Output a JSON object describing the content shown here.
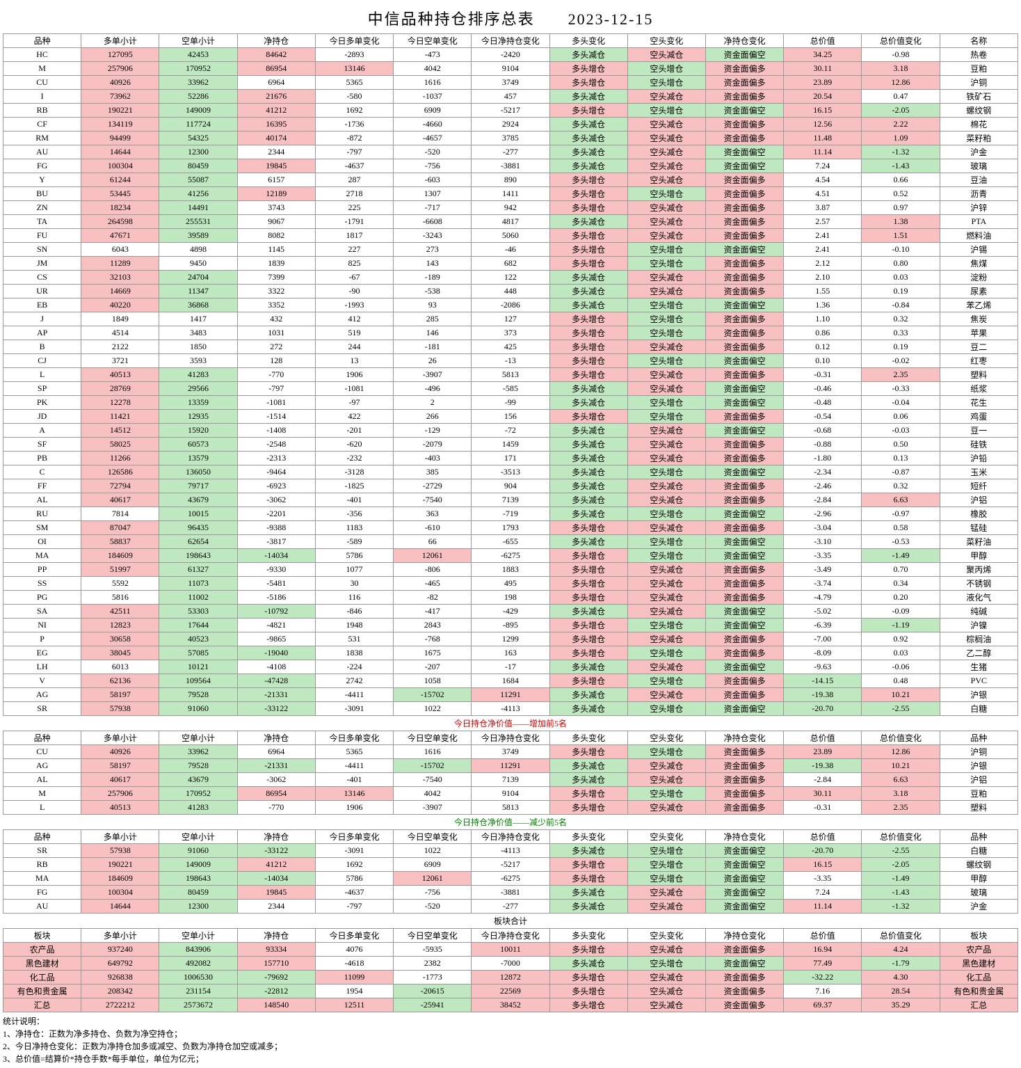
{
  "title": "中信品种持仓排序总表　　2023-12-15",
  "columns": [
    "品种",
    "多单小计",
    "空单小计",
    "净持仓",
    "今日多单变化",
    "今日空单变化",
    "今日净持仓变化",
    "多头变化",
    "空头变化",
    "净持仓变化",
    "总价值",
    "总价值变化",
    "名称"
  ],
  "rows": [
    [
      "HC",
      "127095",
      "42453",
      "84642",
      "-2893",
      "-473",
      "-2420",
      "多头减仓",
      "空头减仓",
      "资金面偏空",
      "34.25",
      "-0.98",
      "热卷"
    ],
    [
      "M",
      "257906",
      "170952",
      "86954",
      "13146",
      "4042",
      "9104",
      "多头增仓",
      "空头增仓",
      "资金面偏多",
      "30.11",
      "3.18",
      "豆粕"
    ],
    [
      "CU",
      "40926",
      "33962",
      "6964",
      "5365",
      "1616",
      "3749",
      "多头增仓",
      "空头增仓",
      "资金面偏多",
      "23.89",
      "12.86",
      "沪铜"
    ],
    [
      "I",
      "73962",
      "52286",
      "21676",
      "-580",
      "-1037",
      "457",
      "多头减仓",
      "空头减仓",
      "资金面偏多",
      "20.54",
      "0.47",
      "铁矿石"
    ],
    [
      "RB",
      "190221",
      "149009",
      "41212",
      "1692",
      "6909",
      "-5217",
      "多头增仓",
      "空头增仓",
      "资金面偏空",
      "16.15",
      "-2.05",
      "螺纹钢"
    ],
    [
      "CF",
      "134119",
      "117724",
      "16395",
      "-1736",
      "-4660",
      "2924",
      "多头减仓",
      "空头减仓",
      "资金面偏多",
      "12.56",
      "2.22",
      "棉花"
    ],
    [
      "RM",
      "94499",
      "54325",
      "40174",
      "-872",
      "-4657",
      "3785",
      "多头减仓",
      "空头减仓",
      "资金面偏多",
      "11.48",
      "1.09",
      "菜籽粕"
    ],
    [
      "AU",
      "14644",
      "12300",
      "2344",
      "-797",
      "-520",
      "-277",
      "多头减仓",
      "空头减仓",
      "资金面偏空",
      "11.14",
      "-1.32",
      "沪金"
    ],
    [
      "FG",
      "100304",
      "80459",
      "19845",
      "-4637",
      "-756",
      "-3881",
      "多头减仓",
      "空头减仓",
      "资金面偏空",
      "7.24",
      "-1.43",
      "玻璃"
    ],
    [
      "Y",
      "61244",
      "55087",
      "6157",
      "287",
      "-603",
      "890",
      "多头增仓",
      "空头减仓",
      "资金面偏多",
      "4.54",
      "0.66",
      "豆油"
    ],
    [
      "BU",
      "53445",
      "41256",
      "12189",
      "2718",
      "1307",
      "1411",
      "多头增仓",
      "空头增仓",
      "资金面偏多",
      "4.51",
      "0.52",
      "沥青"
    ],
    [
      "ZN",
      "18234",
      "14491",
      "3743",
      "225",
      "-717",
      "942",
      "多头增仓",
      "空头减仓",
      "资金面偏多",
      "3.87",
      "0.97",
      "沪锌"
    ],
    [
      "TA",
      "264598",
      "255531",
      "9067",
      "-1791",
      "-6608",
      "4817",
      "多头减仓",
      "空头减仓",
      "资金面偏多",
      "2.57",
      "1.38",
      "PTA"
    ],
    [
      "FU",
      "47671",
      "39589",
      "8082",
      "1817",
      "-3243",
      "5060",
      "多头增仓",
      "空头减仓",
      "资金面偏多",
      "2.41",
      "1.51",
      "燃料油"
    ],
    [
      "SN",
      "6043",
      "4898",
      "1145",
      "227",
      "273",
      "-46",
      "多头增仓",
      "空头增仓",
      "资金面偏空",
      "2.41",
      "-0.10",
      "沪锡"
    ],
    [
      "JM",
      "11289",
      "9450",
      "1839",
      "825",
      "143",
      "682",
      "多头增仓",
      "空头增仓",
      "资金面偏多",
      "2.12",
      "0.80",
      "焦煤"
    ],
    [
      "CS",
      "32103",
      "24704",
      "7399",
      "-67",
      "-189",
      "122",
      "多头减仓",
      "空头减仓",
      "资金面偏多",
      "2.10",
      "0.03",
      "淀粉"
    ],
    [
      "UR",
      "14669",
      "11347",
      "3322",
      "-90",
      "-538",
      "448",
      "多头减仓",
      "空头减仓",
      "资金面偏多",
      "1.55",
      "0.19",
      "尿素"
    ],
    [
      "EB",
      "40220",
      "36868",
      "3352",
      "-1993",
      "93",
      "-2086",
      "多头减仓",
      "空头增仓",
      "资金面偏空",
      "1.36",
      "-0.84",
      "苯乙烯"
    ],
    [
      "J",
      "1849",
      "1417",
      "432",
      "412",
      "285",
      "127",
      "多头增仓",
      "空头增仓",
      "资金面偏多",
      "1.10",
      "0.32",
      "焦炭"
    ],
    [
      "AP",
      "4514",
      "3483",
      "1031",
      "519",
      "146",
      "373",
      "多头增仓",
      "空头增仓",
      "资金面偏多",
      "0.86",
      "0.33",
      "苹果"
    ],
    [
      "B",
      "2122",
      "1850",
      "272",
      "244",
      "-181",
      "425",
      "多头增仓",
      "空头减仓",
      "资金面偏多",
      "0.12",
      "0.19",
      "豆二"
    ],
    [
      "CJ",
      "3721",
      "3593",
      "128",
      "13",
      "26",
      "-13",
      "多头增仓",
      "空头增仓",
      "资金面偏空",
      "0.10",
      "-0.02",
      "红枣"
    ],
    [
      "L",
      "40513",
      "41283",
      "-770",
      "1906",
      "-3907",
      "5813",
      "多头增仓",
      "空头减仓",
      "资金面偏多",
      "-0.31",
      "2.35",
      "塑料"
    ],
    [
      "SP",
      "28769",
      "29566",
      "-797",
      "-1081",
      "-496",
      "-585",
      "多头减仓",
      "空头减仓",
      "资金面偏空",
      "-0.46",
      "-0.33",
      "纸浆"
    ],
    [
      "PK",
      "12278",
      "13359",
      "-1081",
      "-97",
      "2",
      "-99",
      "多头减仓",
      "空头增仓",
      "资金面偏空",
      "-0.48",
      "-0.04",
      "花生"
    ],
    [
      "JD",
      "11421",
      "12935",
      "-1514",
      "422",
      "266",
      "156",
      "多头增仓",
      "空头增仓",
      "资金面偏多",
      "-0.54",
      "0.06",
      "鸡蛋"
    ],
    [
      "A",
      "14512",
      "15920",
      "-1408",
      "-201",
      "-129",
      "-72",
      "多头减仓",
      "空头减仓",
      "资金面偏空",
      "-0.68",
      "-0.03",
      "豆一"
    ],
    [
      "SF",
      "58025",
      "60573",
      "-2548",
      "-620",
      "-2079",
      "1459",
      "多头减仓",
      "空头减仓",
      "资金面偏多",
      "-0.88",
      "0.50",
      "硅铁"
    ],
    [
      "PB",
      "11266",
      "13579",
      "-2313",
      "-232",
      "-403",
      "171",
      "多头减仓",
      "空头减仓",
      "资金面偏多",
      "-1.80",
      "0.13",
      "沪铅"
    ],
    [
      "C",
      "126586",
      "136050",
      "-9464",
      "-3128",
      "385",
      "-3513",
      "多头减仓",
      "空头增仓",
      "资金面偏空",
      "-2.34",
      "-0.87",
      "玉米"
    ],
    [
      "FF",
      "72794",
      "79717",
      "-6923",
      "-1825",
      "-2729",
      "904",
      "多头减仓",
      "空头减仓",
      "资金面偏多",
      "-2.46",
      "0.32",
      "短纤"
    ],
    [
      "AL",
      "40617",
      "43679",
      "-3062",
      "-401",
      "-7540",
      "7139",
      "多头减仓",
      "空头减仓",
      "资金面偏多",
      "-2.84",
      "6.63",
      "沪铝"
    ],
    [
      "RU",
      "7814",
      "10015",
      "-2201",
      "-356",
      "363",
      "-719",
      "多头减仓",
      "空头增仓",
      "资金面偏空",
      "-2.96",
      "-0.97",
      "橡胶"
    ],
    [
      "SM",
      "87047",
      "96435",
      "-9388",
      "1183",
      "-610",
      "1793",
      "多头增仓",
      "空头减仓",
      "资金面偏多",
      "-3.04",
      "0.58",
      "锰硅"
    ],
    [
      "OI",
      "58837",
      "62654",
      "-3817",
      "-589",
      "66",
      "-655",
      "多头减仓",
      "空头增仓",
      "资金面偏空",
      "-3.10",
      "-0.53",
      "菜籽油"
    ],
    [
      "MA",
      "184609",
      "198643",
      "-14034",
      "5786",
      "12061",
      "-6275",
      "多头增仓",
      "空头增仓",
      "资金面偏空",
      "-3.35",
      "-1.49",
      "甲醇"
    ],
    [
      "PP",
      "51997",
      "61327",
      "-9330",
      "1077",
      "-806",
      "1883",
      "多头增仓",
      "空头减仓",
      "资金面偏多",
      "-3.49",
      "0.70",
      "聚丙烯"
    ],
    [
      "SS",
      "5592",
      "11073",
      "-5481",
      "30",
      "-465",
      "495",
      "多头增仓",
      "空头减仓",
      "资金面偏多",
      "-3.74",
      "0.34",
      "不锈钢"
    ],
    [
      "PG",
      "5816",
      "11002",
      "-5186",
      "116",
      "-82",
      "198",
      "多头增仓",
      "空头减仓",
      "资金面偏多",
      "-4.79",
      "0.20",
      "液化气"
    ],
    [
      "SA",
      "42511",
      "53303",
      "-10792",
      "-846",
      "-417",
      "-429",
      "多头减仓",
      "空头减仓",
      "资金面偏空",
      "-5.02",
      "-0.09",
      "纯碱"
    ],
    [
      "NI",
      "12823",
      "17644",
      "-4821",
      "1948",
      "2843",
      "-895",
      "多头增仓",
      "空头增仓",
      "资金面偏空",
      "-6.39",
      "-1.19",
      "沪镍"
    ],
    [
      "P",
      "30658",
      "40523",
      "-9865",
      "531",
      "-768",
      "1299",
      "多头增仓",
      "空头减仓",
      "资金面偏多",
      "-7.00",
      "0.92",
      "棕榈油"
    ],
    [
      "EG",
      "38045",
      "57085",
      "-19040",
      "1838",
      "1675",
      "163",
      "多头增仓",
      "空头增仓",
      "资金面偏多",
      "-8.09",
      "0.03",
      "乙二醇"
    ],
    [
      "LH",
      "6013",
      "10121",
      "-4108",
      "-224",
      "-207",
      "-17",
      "多头减仓",
      "空头减仓",
      "资金面偏空",
      "-9.63",
      "-0.06",
      "生猪"
    ],
    [
      "V",
      "62136",
      "109564",
      "-47428",
      "2742",
      "1058",
      "1684",
      "多头增仓",
      "空头增仓",
      "资金面偏多",
      "-14.15",
      "0.48",
      "PVC"
    ],
    [
      "AG",
      "58197",
      "79528",
      "-21331",
      "-4411",
      "-15702",
      "11291",
      "多头减仓",
      "空头减仓",
      "资金面偏多",
      "-19.38",
      "10.21",
      "沪银"
    ],
    [
      "SR",
      "57938",
      "91060",
      "-33122",
      "-3091",
      "1022",
      "-4113",
      "多头减仓",
      "空头增仓",
      "资金面偏空",
      "-20.70",
      "-2.55",
      "白糖"
    ]
  ],
  "top5_inc_title": "今日持仓净价值——增加前5名",
  "top5_inc": [
    [
      "CU",
      "40926",
      "33962",
      "6964",
      "5365",
      "1616",
      "3749",
      "多头增仓",
      "空头增仓",
      "资金面偏多",
      "23.89",
      "12.86",
      "沪铜"
    ],
    [
      "AG",
      "58197",
      "79528",
      "-21331",
      "-4411",
      "-15702",
      "11291",
      "多头减仓",
      "空头减仓",
      "资金面偏多",
      "-19.38",
      "10.21",
      "沪银"
    ],
    [
      "AL",
      "40617",
      "43679",
      "-3062",
      "-401",
      "-7540",
      "7139",
      "多头减仓",
      "空头减仓",
      "资金面偏多",
      "-2.84",
      "6.63",
      "沪铝"
    ],
    [
      "M",
      "257906",
      "170952",
      "86954",
      "13146",
      "4042",
      "9104",
      "多头增仓",
      "空头增仓",
      "资金面偏多",
      "30.11",
      "3.18",
      "豆粕"
    ],
    [
      "L",
      "40513",
      "41283",
      "-770",
      "1906",
      "-3907",
      "5813",
      "多头增仓",
      "空头减仓",
      "资金面偏多",
      "-0.31",
      "2.35",
      "塑料"
    ]
  ],
  "top5_dec_title": "今日持仓净价值——减少前5名",
  "top5_dec": [
    [
      "SR",
      "57938",
      "91060",
      "-33122",
      "-3091",
      "1022",
      "-4113",
      "多头减仓",
      "空头增仓",
      "资金面偏空",
      "-20.70",
      "-2.55",
      "白糖"
    ],
    [
      "RB",
      "190221",
      "149009",
      "41212",
      "1692",
      "6909",
      "-5217",
      "多头增仓",
      "空头增仓",
      "资金面偏空",
      "16.15",
      "-2.05",
      "螺纹钢"
    ],
    [
      "MA",
      "184609",
      "198643",
      "-14034",
      "5786",
      "12061",
      "-6275",
      "多头增仓",
      "空头增仓",
      "资金面偏空",
      "-3.35",
      "-1.49",
      "甲醇"
    ],
    [
      "FG",
      "100304",
      "80459",
      "19845",
      "-4637",
      "-756",
      "-3881",
      "多头减仓",
      "空头减仓",
      "资金面偏空",
      "7.24",
      "-1.43",
      "玻璃"
    ],
    [
      "AU",
      "14644",
      "12300",
      "2344",
      "-797",
      "-520",
      "-277",
      "多头减仓",
      "空头减仓",
      "资金面偏空",
      "11.14",
      "-1.32",
      "沪金"
    ]
  ],
  "sector_title": "板块合计",
  "sector_columns": [
    "板块",
    "多单小计",
    "空单小计",
    "净持仓",
    "今日多单变化",
    "今日空单变化",
    "今日净持仓变化",
    "多头变化",
    "空头变化",
    "净持仓变化",
    "总价值",
    "总价值变化",
    "板块"
  ],
  "sectors": [
    [
      "农产品",
      "937240",
      "843906",
      "93334",
      "4076",
      "-5935",
      "10011",
      "多头增仓",
      "空头减仓",
      "资金面偏多",
      "16.94",
      "4.24",
      "农产品"
    ],
    [
      "黑色建材",
      "649792",
      "492082",
      "157710",
      "-4618",
      "2382",
      "-7000",
      "多头减仓",
      "空头增仓",
      "资金面偏空",
      "77.49",
      "-1.79",
      "黑色建材"
    ],
    [
      "化工品",
      "926838",
      "1006530",
      "-79692",
      "11099",
      "-1773",
      "12872",
      "多头增仓",
      "空头减仓",
      "资金面偏多",
      "-32.22",
      "4.30",
      "化工品"
    ],
    [
      "有色和贵金属",
      "208342",
      "231154",
      "-22812",
      "1954",
      "-20615",
      "22569",
      "多头增仓",
      "空头减仓",
      "资金面偏多",
      "7.16",
      "28.54",
      "有色和贵金属"
    ],
    [
      "汇总",
      "2722212",
      "2573672",
      "148540",
      "12511",
      "-25941",
      "38452",
      "多头增仓",
      "空头减仓",
      "资金面偏多",
      "69.37",
      "35.29",
      "汇总"
    ]
  ],
  "notes_title": "统计说明：",
  "notes": [
    "1、净持仓：正数为净多持仓、负数为净空持仓；",
    "2、今日净持仓变化：正数为净持仓加多或减空、负数为净持仓加空或减多；",
    "3、总价值=结算价*持仓手数*每手单位，单位为亿元；"
  ],
  "thresholds": {
    "col1": 10000,
    "col2": 10000,
    "col3": 10000,
    "col4": 10000,
    "col5": 10000,
    "col6": 10000,
    "col10": 10,
    "col11": 1
  },
  "top5_columns_last": "品种"
}
